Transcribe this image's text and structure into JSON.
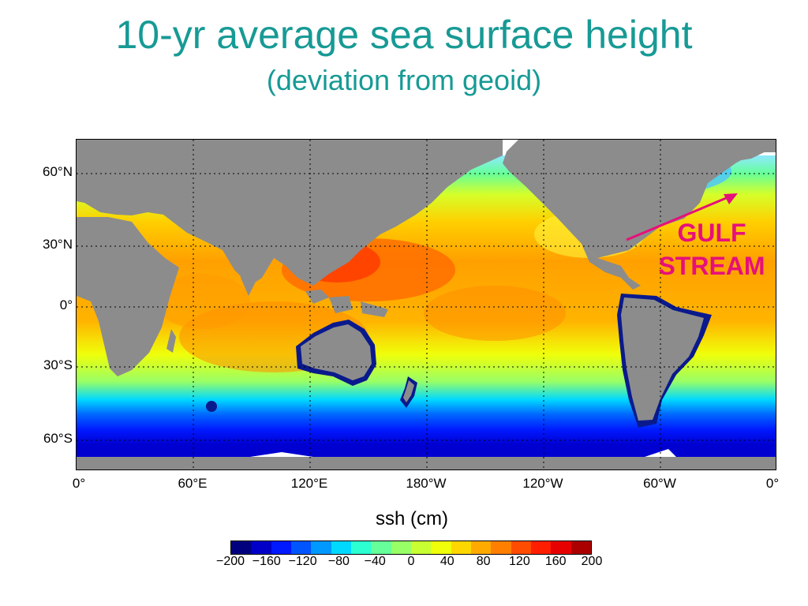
{
  "title": "10-yr average sea surface height",
  "subtitle": "(deviation from geoid)",
  "map": {
    "lat_labels": [
      "60°N",
      "30°N",
      "0°",
      "30°S",
      "60°S"
    ],
    "lon_labels": [
      "0°",
      "60°E",
      "120°E",
      "180°W",
      "120°W",
      "60°W",
      "0°"
    ],
    "annotation": {
      "line1": "GULF",
      "line2": "STREAM",
      "color": "#e6107a"
    },
    "land_color": "#8c8c8c",
    "gridlines": "dotted"
  },
  "colorbar": {
    "label": "ssh (cm)",
    "ticks": [
      "−200",
      "−160",
      "−120",
      "−80",
      "−40",
      "0",
      "40",
      "80",
      "120",
      "160",
      "200"
    ],
    "colors": [
      "#00007f",
      "#0000c8",
      "#0019ff",
      "#0055ff",
      "#0099ff",
      "#00d9ff",
      "#2cffd2",
      "#66ff99",
      "#99ff66",
      "#c8ff33",
      "#f0ff0a",
      "#ffd700",
      "#ffaa00",
      "#ff7f00",
      "#ff4c00",
      "#ff1e00",
      "#e60000",
      "#aa0000"
    ]
  }
}
